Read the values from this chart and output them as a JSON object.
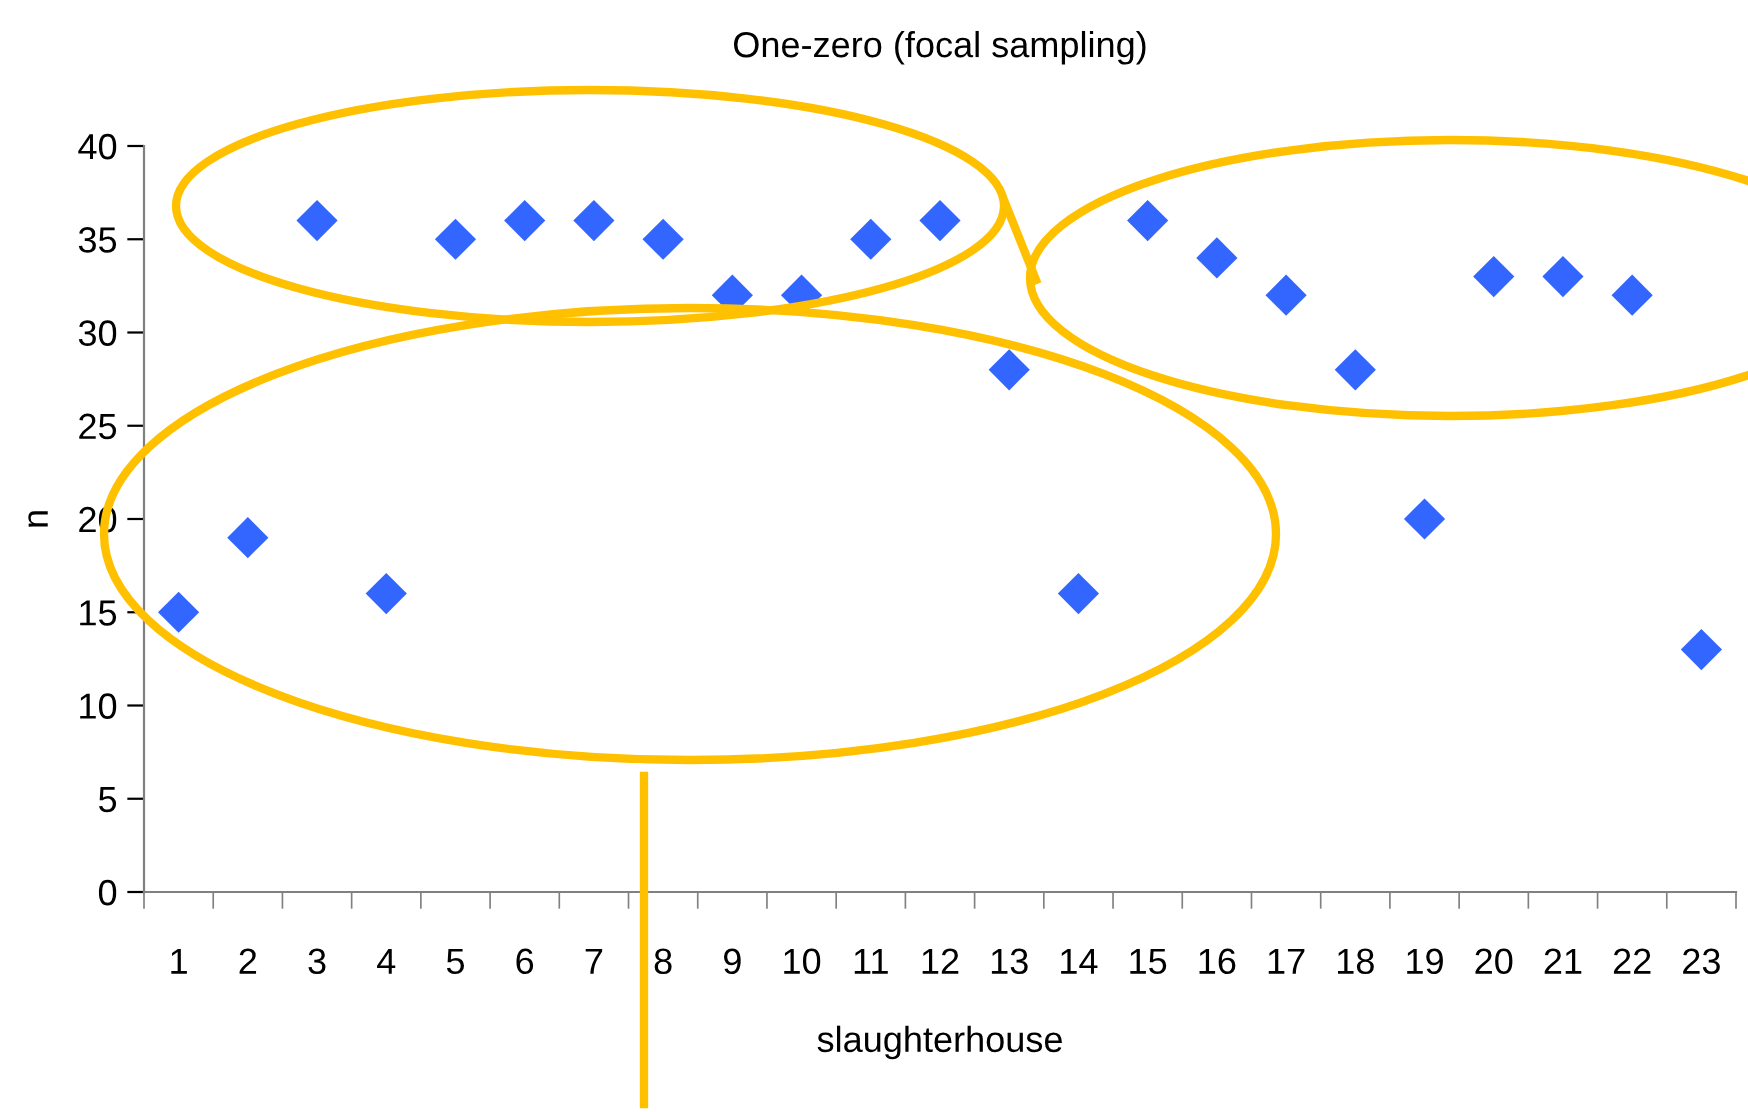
{
  "chart_data": {
    "type": "scatter",
    "title": "One-zero (focal sampling)",
    "xlabel": "slaughterhouse",
    "ylabel": "n",
    "categories": [
      "1",
      "2",
      "3",
      "4",
      "5",
      "6",
      "7",
      "8",
      "9",
      "10",
      "11",
      "12",
      "13",
      "14",
      "15",
      "16",
      "17",
      "18",
      "19",
      "20",
      "21",
      "22",
      "23"
    ],
    "series": [
      {
        "color": "#3366ff",
        "values": [
          15,
          19,
          36,
          16,
          35,
          36,
          36,
          35,
          32,
          32,
          35,
          36,
          28,
          16,
          36,
          34,
          32,
          28,
          20,
          33,
          33,
          32,
          13
        ]
      }
    ],
    "ylim": [
      0,
      40
    ],
    "yticks": [
      0,
      5,
      10,
      15,
      20,
      25,
      30,
      35,
      40
    ],
    "marker": "diamond",
    "grid": false,
    "legend": false
  }
}
